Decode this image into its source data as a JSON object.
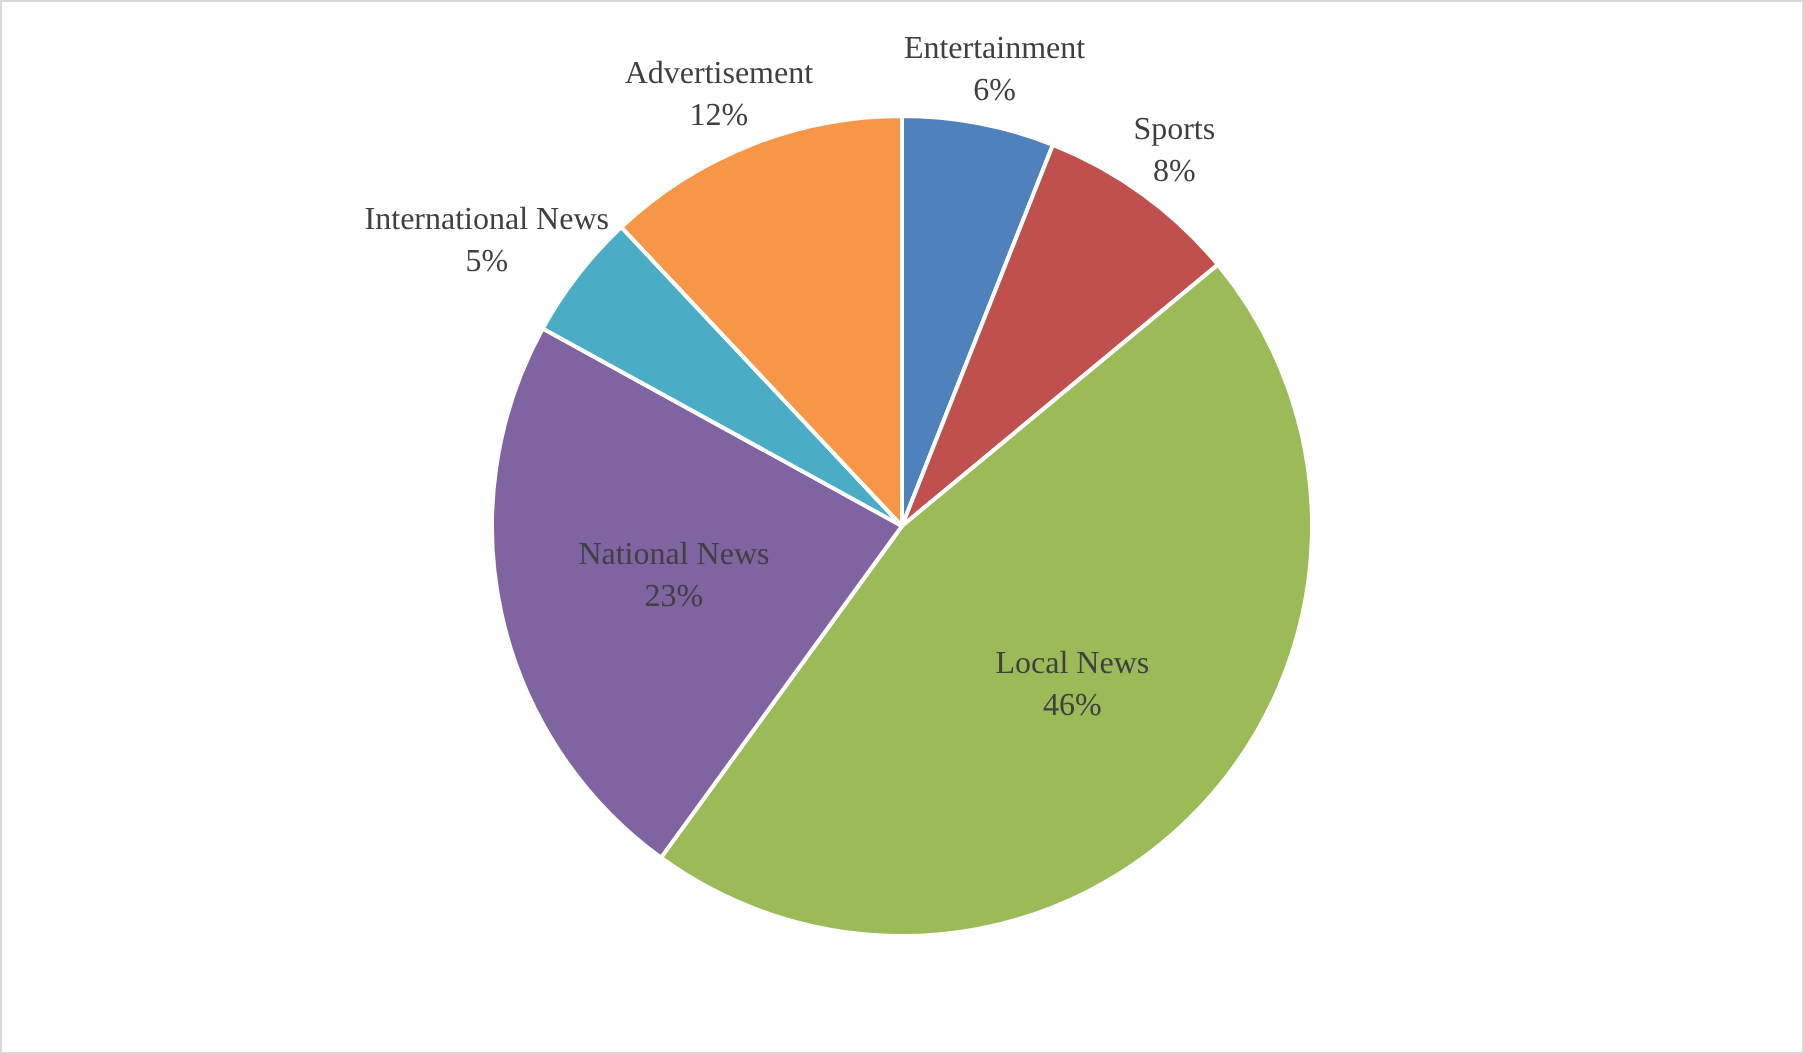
{
  "chart_data": {
    "type": "pie",
    "categories": [
      "Entertainment",
      "Sports",
      "Local News",
      "National News",
      "International News",
      "Advertisement"
    ],
    "values": [
      6,
      8,
      46,
      23,
      5,
      12
    ],
    "value_labels": [
      "6%",
      "8%",
      "46%",
      "23%",
      "5%",
      "12%"
    ],
    "colors": [
      "#4f81bd",
      "#c0504d",
      "#9bbb59",
      "#8064a2",
      "#4bacc6",
      "#f79646"
    ]
  }
}
